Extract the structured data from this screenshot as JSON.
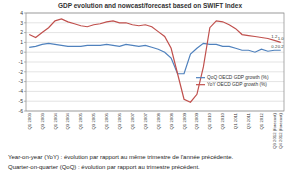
{
  "chart_data": {
    "type": "line",
    "title": "GDP evolution and nowcast/forecast based on SWIFT Index",
    "categories": [
      "Q1 2003",
      null,
      "Q3 2003",
      null,
      "Q1 2004",
      null,
      "Q3 2004",
      null,
      "Q1 2005",
      null,
      "Q3 2005",
      null,
      "Q1 2006",
      null,
      "Q3 2006",
      null,
      "Q1 2007",
      null,
      "Q3 2007",
      null,
      "Q1 2008",
      null,
      "Q3 2008",
      null,
      "Q1 2009",
      null,
      "Q3 2009",
      null,
      "Q1 2010",
      null,
      "Q3 2010",
      null,
      "Q1 2011",
      null,
      "Q3 2011",
      null,
      "Q1 2012",
      null,
      "Q3 2012 (forecast)",
      "Q4 2012 (forecast)"
    ],
    "series": [
      {
        "name": "QoQ OECD GDP growth (%)",
        "color": "#4f81bd",
        "values": [
          0.5,
          0.6,
          0.8,
          0.9,
          0.8,
          0.7,
          0.6,
          0.6,
          0.6,
          0.7,
          0.7,
          0.7,
          0.8,
          0.7,
          0.6,
          0.8,
          0.7,
          0.6,
          0.7,
          0.5,
          0.3,
          0.0,
          -0.6,
          -2.2,
          -2.2,
          -0.2,
          0.4,
          0.9,
          0.8,
          0.8,
          0.6,
          0.6,
          0.4,
          0.2,
          0.2,
          0.0,
          0.3,
          0.1,
          0.2,
          0.2
        ],
        "value_labels": [
          null,
          null,
          null,
          null,
          null,
          null,
          null,
          null,
          null,
          null,
          null,
          null,
          null,
          null,
          null,
          null,
          null,
          null,
          null,
          null,
          null,
          null,
          null,
          null,
          null,
          null,
          null,
          null,
          null,
          null,
          null,
          null,
          null,
          null,
          null,
          null,
          null,
          null,
          "0.2",
          "0.2"
        ]
      },
      {
        "name": "YoY OECD GDP growth (%)",
        "color": "#c0504d",
        "values": [
          1.8,
          1.5,
          2.0,
          2.5,
          3.2,
          3.4,
          3.1,
          2.9,
          2.7,
          2.6,
          2.8,
          2.9,
          3.1,
          3.2,
          3.0,
          3.0,
          2.8,
          2.7,
          2.8,
          2.6,
          2.1,
          1.6,
          0.4,
          -2.2,
          -4.8,
          -5.1,
          -4.3,
          -1.5,
          2.5,
          3.2,
          3.1,
          2.8,
          2.4,
          1.8,
          1.7,
          1.6,
          1.5,
          1.4,
          1.2,
          1.0
        ],
        "value_labels": [
          null,
          null,
          null,
          null,
          null,
          null,
          null,
          null,
          null,
          null,
          null,
          null,
          null,
          null,
          null,
          null,
          null,
          null,
          null,
          null,
          null,
          null,
          null,
          null,
          null,
          null,
          null,
          null,
          null,
          null,
          null,
          null,
          null,
          null,
          null,
          null,
          null,
          null,
          "1.2",
          "1.0"
        ]
      }
    ],
    "ylim": [
      -6,
      4
    ],
    "yticks": [
      -6,
      -5,
      -4,
      -3,
      -2,
      -1,
      0,
      1,
      2,
      3,
      4
    ],
    "grid": true,
    "legend": "lower right",
    "data_labels": true,
    "notes": [
      "Year-on-year (YoY) : évolution par rapport au même trimestre de l'année précédente.",
      "Quarter-on-quarter (QoQ) : évolution par rapport au trimestre précédent."
    ]
  }
}
